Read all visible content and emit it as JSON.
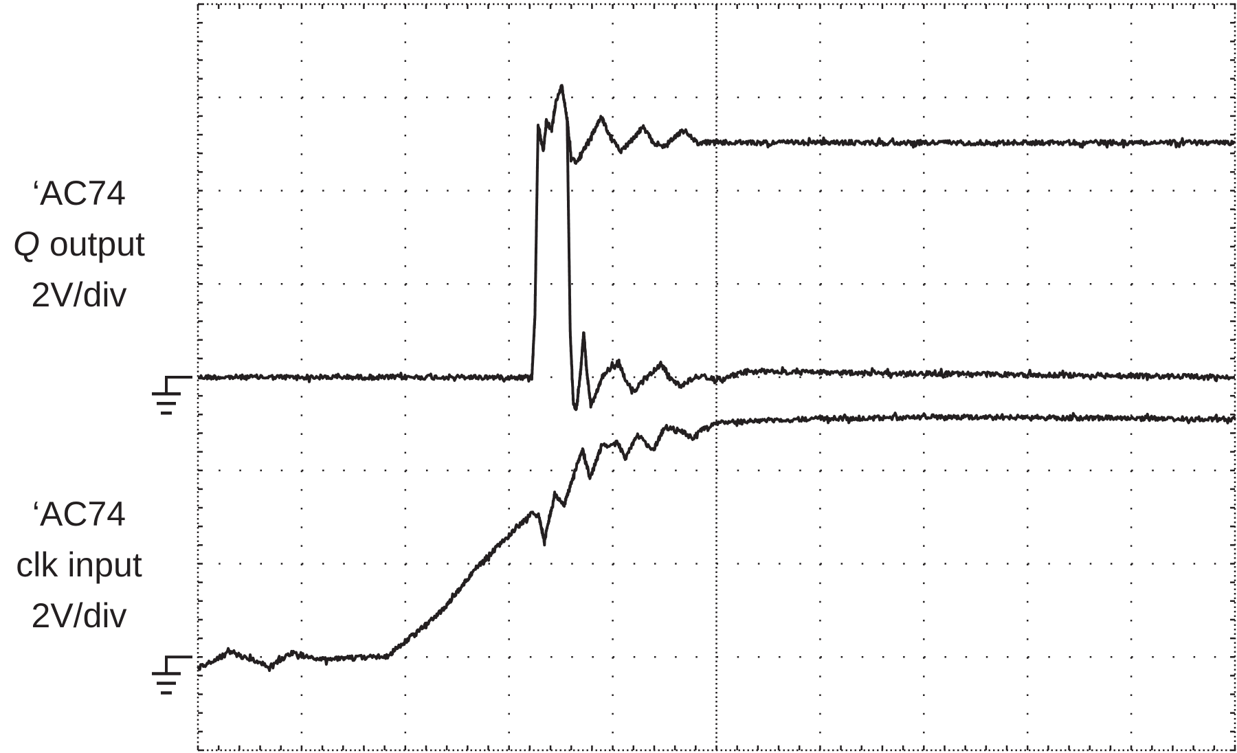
{
  "labels": {
    "q_output": {
      "line1": "‘AC74",
      "q_symbol": "Q",
      "line2_rest": " output",
      "line3": "2V/div"
    },
    "clk_input": {
      "line1": "‘AC74",
      "line2": "clk input",
      "line3": "2V/div"
    }
  },
  "chart_data": {
    "type": "line",
    "title": "",
    "xlabel": "",
    "ylabel": "",
    "x_divisions": 10,
    "y_divisions": 8,
    "grid": true,
    "trace_color": "#231f20",
    "series": [
      {
        "channel": "Q output",
        "volts_per_div": 2,
        "ground_division_from_top": 4,
        "points": [
          [
            0,
            0
          ],
          [
            3.22,
            0
          ],
          [
            3.25,
            1.31
          ],
          [
            3.28,
            5.37
          ],
          [
            3.33,
            4.86
          ],
          [
            3.36,
            5.46
          ],
          [
            3.41,
            5.29
          ],
          [
            3.45,
            5.88
          ],
          [
            3.51,
            6.25
          ],
          [
            3.56,
            5.54
          ],
          [
            3.6,
            4.69
          ],
          [
            3.66,
            4.61
          ],
          [
            3.78,
            5.12
          ],
          [
            3.89,
            5.59
          ],
          [
            3.98,
            5.12
          ],
          [
            4.08,
            4.86
          ],
          [
            4.2,
            5.12
          ],
          [
            4.29,
            5.37
          ],
          [
            4.39,
            5.03
          ],
          [
            4.5,
            4.95
          ],
          [
            4.62,
            5.2
          ],
          [
            4.69,
            5.29
          ],
          [
            4.81,
            5.03
          ],
          [
            5.02,
            5.03
          ],
          [
            10,
            5.03
          ]
        ]
      },
      {
        "channel": "Q output",
        "volts_per_div": 2,
        "ground_division_from_top": 4,
        "points": [
          [
            3.56,
            5.54
          ],
          [
            3.59,
            0.97
          ],
          [
            3.62,
            -0.56
          ],
          [
            3.65,
            -0.68
          ],
          [
            3.69,
            0.12
          ],
          [
            3.72,
            0.97
          ],
          [
            3.75,
            0.12
          ],
          [
            3.79,
            -0.64
          ],
          [
            3.83,
            -0.39
          ],
          [
            3.93,
            0.12
          ],
          [
            4.06,
            0.32
          ],
          [
            4.12,
            -0.05
          ],
          [
            4.2,
            -0.31
          ],
          [
            4.31,
            -0.05
          ],
          [
            4.47,
            0.29
          ],
          [
            4.56,
            -0.05
          ],
          [
            4.66,
            -0.19
          ],
          [
            4.81,
            0.03
          ],
          [
            5.04,
            -0.05
          ],
          [
            5.27,
            0.12
          ],
          [
            10,
            0
          ]
        ]
      },
      {
        "channel": "clk input",
        "volts_per_div": 2,
        "ground_division_from_top": 7,
        "points": [
          [
            0,
            -0.24
          ],
          [
            0.31,
            0.1
          ],
          [
            0.69,
            -0.19
          ],
          [
            0.92,
            0.1
          ],
          [
            1.15,
            -0.07
          ],
          [
            1.83,
            0.02
          ],
          [
            2.06,
            0.44
          ],
          [
            2.37,
            1.03
          ],
          [
            2.67,
            1.88
          ],
          [
            2.98,
            2.56
          ],
          [
            3.22,
            3.07
          ],
          [
            3.28,
            3.1
          ],
          [
            3.34,
            2.47
          ],
          [
            3.44,
            3.49
          ],
          [
            3.53,
            3.24
          ],
          [
            3.65,
            4.08
          ],
          [
            3.71,
            4.46
          ],
          [
            3.78,
            3.83
          ],
          [
            3.89,
            4.51
          ],
          [
            4.05,
            4.59
          ],
          [
            4.12,
            4.25
          ],
          [
            4.24,
            4.76
          ],
          [
            4.39,
            4.42
          ],
          [
            4.5,
            4.93
          ],
          [
            4.66,
            4.85
          ],
          [
            4.77,
            4.68
          ],
          [
            4.89,
            4.93
          ],
          [
            5.04,
            5.02
          ],
          [
            5.73,
            5.1
          ],
          [
            7.25,
            5.15
          ],
          [
            10,
            5.1
          ]
        ]
      }
    ]
  }
}
